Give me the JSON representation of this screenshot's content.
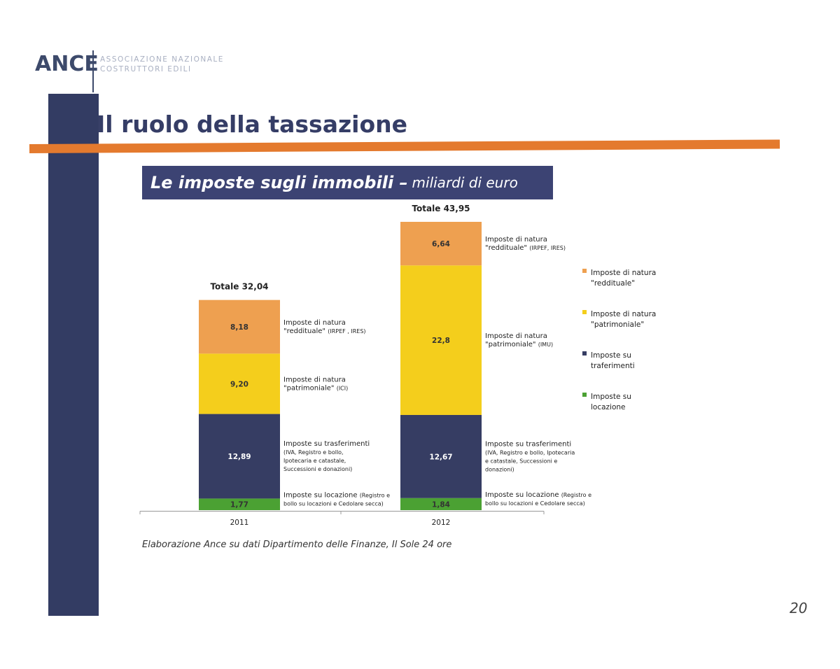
{
  "logo": {
    "name": "ANCE",
    "subtitle_line1": "ASSOCIAZIONE NAZIONALE",
    "subtitle_line2": "COSTRUTTORI EDILI"
  },
  "page_title": "Il ruolo della tassazione",
  "banner": {
    "title": "Le imposte sugli immobili –",
    "unit": "miliardi di euro"
  },
  "footnote": "Elaborazione Ance su dati Dipartimento delle Finanze, Il Sole 24 ore",
  "page_number": "20",
  "chart_data": {
    "type": "bar",
    "stacked": true,
    "categories": [
      "2011",
      "2012"
    ],
    "totals": [
      "Totale 32,04",
      "Totale 43,95"
    ],
    "series": [
      {
        "name": "Imposte su locazione",
        "legend_label": [
          "Imposte su",
          "locazione"
        ],
        "color": "#4ba133",
        "values": [
          1.77,
          1.84
        ],
        "value_labels": [
          "1,77",
          "1,84"
        ],
        "annotations": [
          [
            {
              "t": "Imposte su locazione ",
              "s": 10
            },
            {
              "t": "(Registro e",
              "s": 8
            },
            {
              "t": "bollo su locazioni  e Cedolare secca)",
              "s": 8,
              "br": true
            }
          ],
          [
            {
              "t": "Imposte su locazione  ",
              "s": 10
            },
            {
              "t": "(Registro e",
              "s": 8
            },
            {
              "t": "bollo su locazioni  e Cedolare secca)",
              "s": 8,
              "br": true
            }
          ]
        ]
      },
      {
        "name": "Imposte su traferimenti",
        "legend_label": [
          "Imposte su",
          "traferimenti"
        ],
        "color": "#363d63",
        "values": [
          12.89,
          12.67
        ],
        "value_labels": [
          "12,89",
          "12,67"
        ],
        "annotations": [
          [
            {
              "t": "Imposte su trasferimenti",
              "s": 10
            },
            {
              "t": "(IVA, Registro e bollo,",
              "s": 8,
              "br": true
            },
            {
              "t": "Ipotecaria e catastale,",
              "s": 8,
              "br": true
            },
            {
              "t": "Successioni e donazioni)",
              "s": 8,
              "br": true
            }
          ],
          [
            {
              "t": "Imposte su trasferimenti",
              "s": 10
            },
            {
              "t": "(IVA, Registro e bollo, Ipotecaria",
              "s": 8,
              "br": true
            },
            {
              "t": "e catastale, Successioni e",
              "s": 8,
              "br": true
            },
            {
              "t": "donazioni)",
              "s": 8,
              "br": true
            }
          ]
        ]
      },
      {
        "name": "Imposte di natura \"patrimoniale\"",
        "legend_label": [
          "Imposte di natura",
          "\"patrimoniale\""
        ],
        "color": "#f4ce1c",
        "values": [
          9.2,
          22.8
        ],
        "value_labels": [
          "9,20",
          "22,8"
        ],
        "annotations": [
          [
            {
              "t": "Imposte di natura",
              "s": 10
            },
            {
              "t": "\"patrimoniale\" ",
              "s": 10,
              "br": true
            },
            {
              "t": "(ICI)",
              "s": 8
            }
          ],
          [
            {
              "t": "Imposte di natura",
              "s": 10
            },
            {
              "t": "\"patrimoniale\" ",
              "s": 10,
              "br": true
            },
            {
              "t": "(IMU)",
              "s": 8
            }
          ]
        ]
      },
      {
        "name": "Imposte di natura \"reddituale\"",
        "legend_label": [
          "Imposte di natura",
          "\"reddituale\""
        ],
        "color": "#eea050",
        "values": [
          8.18,
          6.64
        ],
        "value_labels": [
          "8,18",
          "6,64"
        ],
        "annotations": [
          [
            {
              "t": "Imposte di natura",
              "s": 10
            },
            {
              "t": "\"reddituale\" ",
              "s": 10,
              "br": true
            },
            {
              "t": "(IRPEF , IRES)",
              "s": 8
            }
          ],
          [
            {
              "t": "Imposte di natura",
              "s": 10
            },
            {
              "t": "\"reddituale\" ",
              "s": 10,
              "br": true
            },
            {
              "t": "(IRPEF, IRES)",
              "s": 8
            }
          ]
        ]
      }
    ],
    "legend_order": [
      3,
      2,
      1,
      0
    ],
    "legend_position": "right",
    "ylim": [
      0,
      43.95
    ],
    "grid": false
  }
}
